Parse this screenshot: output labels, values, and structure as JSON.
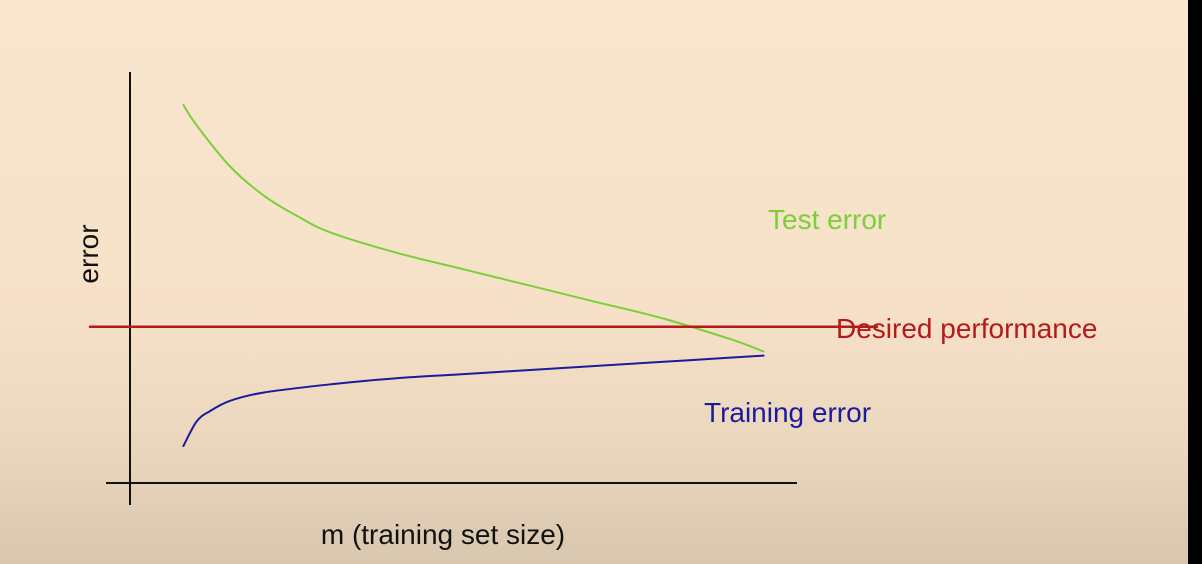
{
  "chart_data": {
    "type": "line",
    "title": "",
    "xlabel": "m (training set size)",
    "ylabel": "error",
    "xlim": [
      0,
      100
    ],
    "ylim": [
      0,
      100
    ],
    "grid": false,
    "legend": "none",
    "series": [
      {
        "name": "Test error",
        "color": "#7ccf3a",
        "x": [
          8,
          10,
          15,
          20,
          25,
          30,
          40,
          50,
          60,
          70,
          80,
          90,
          95
        ],
        "y": [
          92,
          87,
          77,
          70,
          65,
          61,
          56,
          52,
          48,
          44,
          40,
          35,
          32
        ]
      },
      {
        "name": "Desired performance",
        "color": "#b51a1a",
        "x": [
          -6,
          112
        ],
        "y": [
          38,
          38
        ]
      },
      {
        "name": "Training error",
        "color": "#1b1b9c",
        "x": [
          8,
          10,
          12,
          15,
          20,
          30,
          40,
          50,
          60,
          70,
          80,
          90,
          95
        ],
        "y": [
          9,
          15,
          17.5,
          20,
          22,
          24,
          25.5,
          26.5,
          27.5,
          28.5,
          29.5,
          30.5,
          31
        ]
      }
    ]
  }
}
